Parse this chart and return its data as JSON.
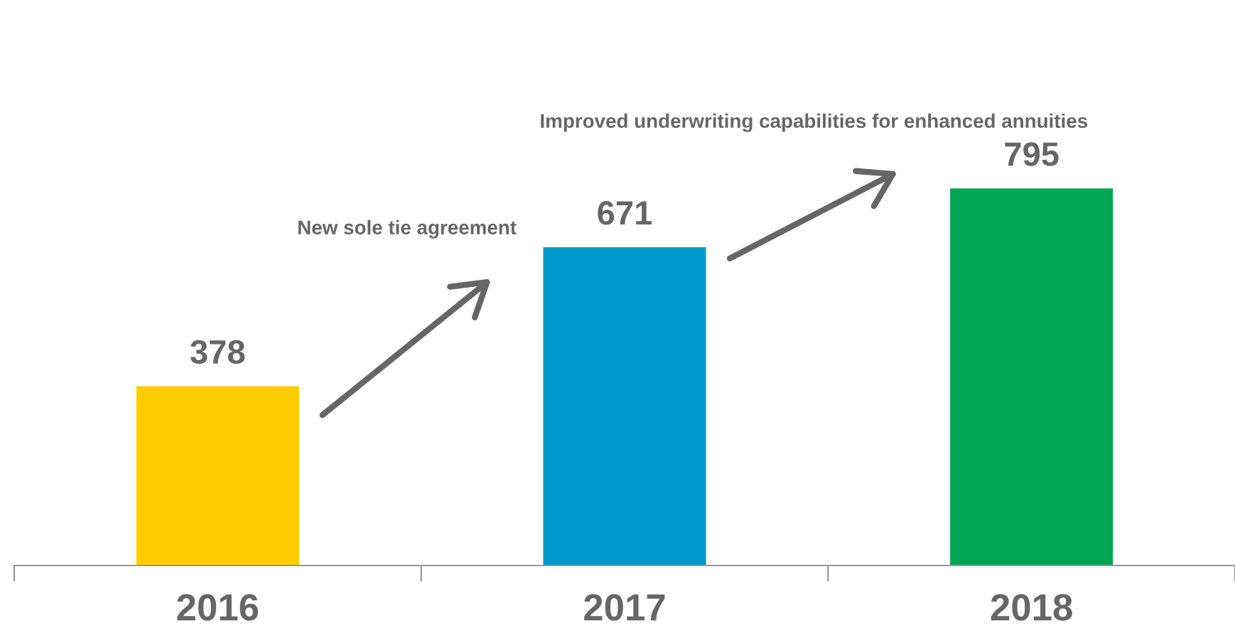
{
  "chart_data": {
    "type": "bar",
    "categories": [
      "2016",
      "2017",
      "2018"
    ],
    "values": [
      378,
      671,
      795
    ],
    "colors": [
      "#ffcc00",
      "#0099cc",
      "#00a651"
    ],
    "data_labels": true,
    "grid": false,
    "legend": false,
    "tick_labels": "x",
    "annotations": [
      "New sole tie agreement",
      "Improved underwriting capabilities for enhanced annuities"
    ]
  }
}
